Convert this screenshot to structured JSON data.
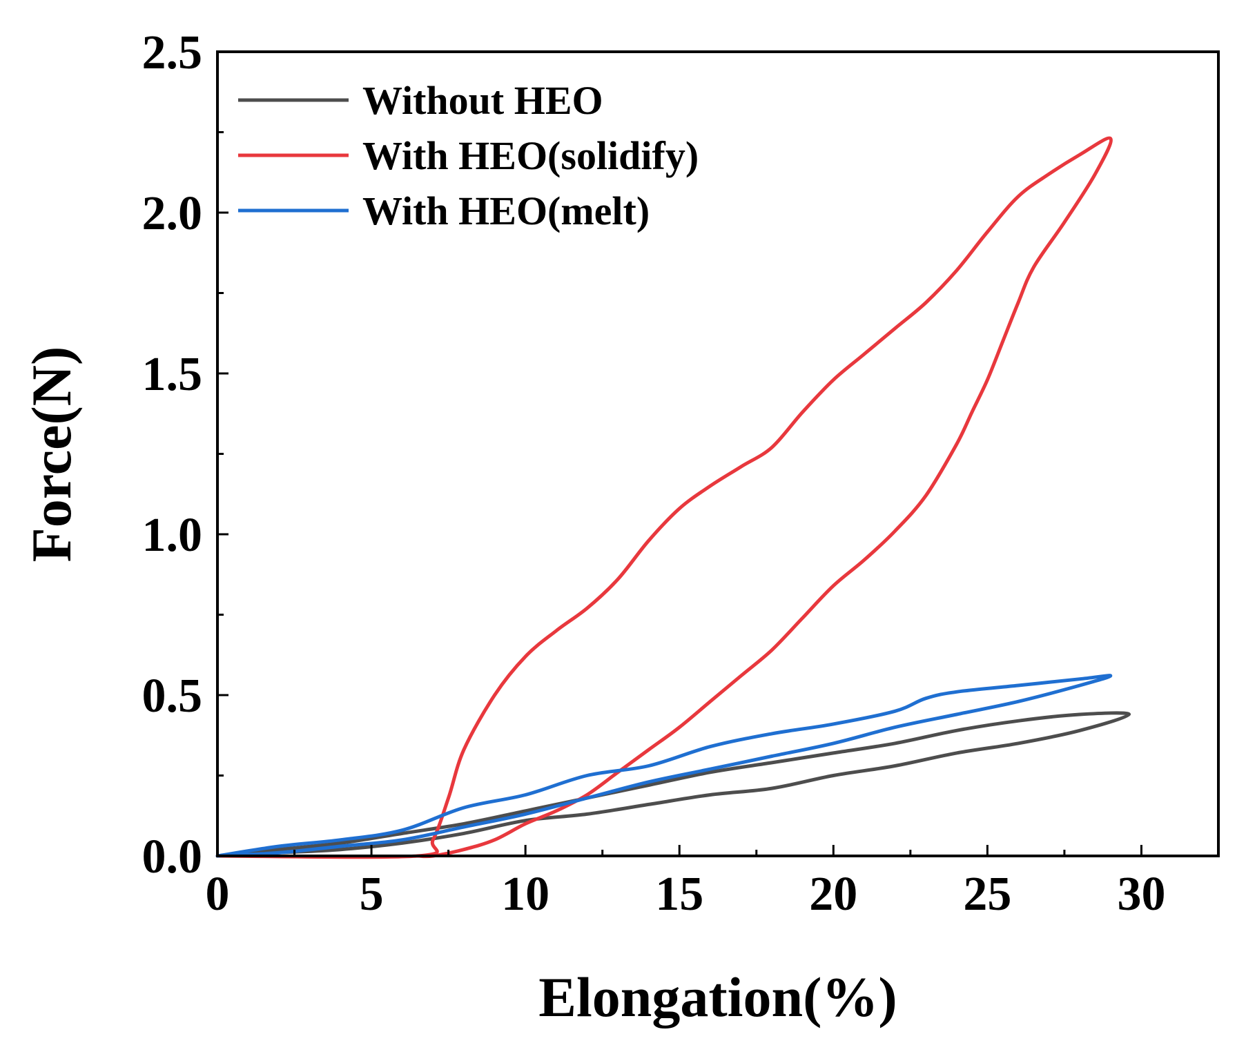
{
  "chart_data": {
    "type": "line",
    "title": "",
    "xlabel": "Elongation(%)",
    "ylabel": "Force(N)",
    "xlim": [
      0,
      32.5
    ],
    "ylim": [
      0,
      2.5
    ],
    "xticks": [
      0,
      5,
      10,
      15,
      20,
      25,
      30
    ],
    "xtick_labels": [
      "0",
      "5",
      "10",
      "15",
      "20",
      "25",
      "30"
    ],
    "yticks": [
      0,
      0.5,
      1,
      1.5,
      2,
      2.5
    ],
    "ytick_labels": [
      "0.0",
      "0.5",
      "1.0",
      "1.5",
      "2.0",
      "2.5"
    ],
    "grid": false,
    "legend_position": "top-left",
    "series": [
      {
        "name": "Without HEO",
        "color": "#4d4d4d",
        "points": [
          [
            0,
            0
          ],
          [
            2,
            0.02
          ],
          [
            4,
            0.04
          ],
          [
            6,
            0.07
          ],
          [
            8,
            0.1
          ],
          [
            10,
            0.14
          ],
          [
            12,
            0.18
          ],
          [
            14,
            0.22
          ],
          [
            16,
            0.26
          ],
          [
            18,
            0.29
          ],
          [
            20,
            0.32
          ],
          [
            22,
            0.35
          ],
          [
            24,
            0.39
          ],
          [
            26,
            0.42
          ],
          [
            28,
            0.44
          ],
          [
            29.6,
            0.44
          ],
          [
            28,
            0.39
          ],
          [
            26,
            0.35
          ],
          [
            24,
            0.32
          ],
          [
            22,
            0.28
          ],
          [
            20,
            0.25
          ],
          [
            18,
            0.21
          ],
          [
            16,
            0.19
          ],
          [
            14,
            0.16
          ],
          [
            12,
            0.13
          ],
          [
            10,
            0.11
          ],
          [
            8,
            0.07
          ],
          [
            6,
            0.04
          ],
          [
            4,
            0.02
          ],
          [
            2,
            0.01
          ],
          [
            0,
            0
          ]
        ]
      },
      {
        "name": "With HEO(solidify)",
        "color": "#e8383d",
        "points": [
          [
            0,
            0
          ],
          [
            6.5,
            0
          ],
          [
            7,
            0.05
          ],
          [
            7.5,
            0.18
          ],
          [
            8,
            0.33
          ],
          [
            9,
            0.5
          ],
          [
            10,
            0.62
          ],
          [
            11,
            0.7
          ],
          [
            12,
            0.77
          ],
          [
            13,
            0.86
          ],
          [
            14,
            0.98
          ],
          [
            15,
            1.08
          ],
          [
            16,
            1.15
          ],
          [
            17,
            1.21
          ],
          [
            18,
            1.27
          ],
          [
            19,
            1.38
          ],
          [
            20,
            1.48
          ],
          [
            21,
            1.56
          ],
          [
            22,
            1.64
          ],
          [
            23,
            1.72
          ],
          [
            24,
            1.82
          ],
          [
            25,
            1.94
          ],
          [
            26,
            2.05
          ],
          [
            27,
            2.12
          ],
          [
            28,
            2.18
          ],
          [
            29,
            2.23
          ],
          [
            28.5,
            2.12
          ],
          [
            27.5,
            1.97
          ],
          [
            26.5,
            1.83
          ],
          [
            26,
            1.72
          ],
          [
            25.5,
            1.6
          ],
          [
            25,
            1.48
          ],
          [
            24.5,
            1.38
          ],
          [
            24,
            1.28
          ],
          [
            23,
            1.12
          ],
          [
            22,
            1.01
          ],
          [
            21,
            0.92
          ],
          [
            20,
            0.84
          ],
          [
            19,
            0.74
          ],
          [
            18,
            0.64
          ],
          [
            17,
            0.56
          ],
          [
            16,
            0.48
          ],
          [
            15,
            0.4
          ],
          [
            14,
            0.33
          ],
          [
            13,
            0.26
          ],
          [
            12,
            0.19
          ],
          [
            11,
            0.14
          ],
          [
            10,
            0.1
          ],
          [
            9,
            0.05
          ],
          [
            8,
            0.02
          ],
          [
            7,
            0
          ],
          [
            6.5,
            0
          ]
        ]
      },
      {
        "name": "With HEO(melt)",
        "color": "#1f6fd1",
        "points": [
          [
            0,
            0
          ],
          [
            2,
            0.03
          ],
          [
            4,
            0.05
          ],
          [
            6,
            0.08
          ],
          [
            8,
            0.15
          ],
          [
            10,
            0.19
          ],
          [
            12,
            0.25
          ],
          [
            14,
            0.28
          ],
          [
            16,
            0.34
          ],
          [
            18,
            0.38
          ],
          [
            20,
            0.41
          ],
          [
            22,
            0.45
          ],
          [
            23,
            0.49
          ],
          [
            24,
            0.51
          ],
          [
            26,
            0.53
          ],
          [
            28,
            0.55
          ],
          [
            29,
            0.56
          ],
          [
            28,
            0.53
          ],
          [
            26,
            0.48
          ],
          [
            24,
            0.44
          ],
          [
            22,
            0.4
          ],
          [
            20,
            0.35
          ],
          [
            18,
            0.31
          ],
          [
            16,
            0.27
          ],
          [
            14,
            0.23
          ],
          [
            12,
            0.18
          ],
          [
            10,
            0.13
          ],
          [
            8,
            0.09
          ],
          [
            6,
            0.05
          ],
          [
            4,
            0.03
          ],
          [
            2,
            0.01
          ],
          [
            0,
            0
          ]
        ]
      }
    ]
  }
}
